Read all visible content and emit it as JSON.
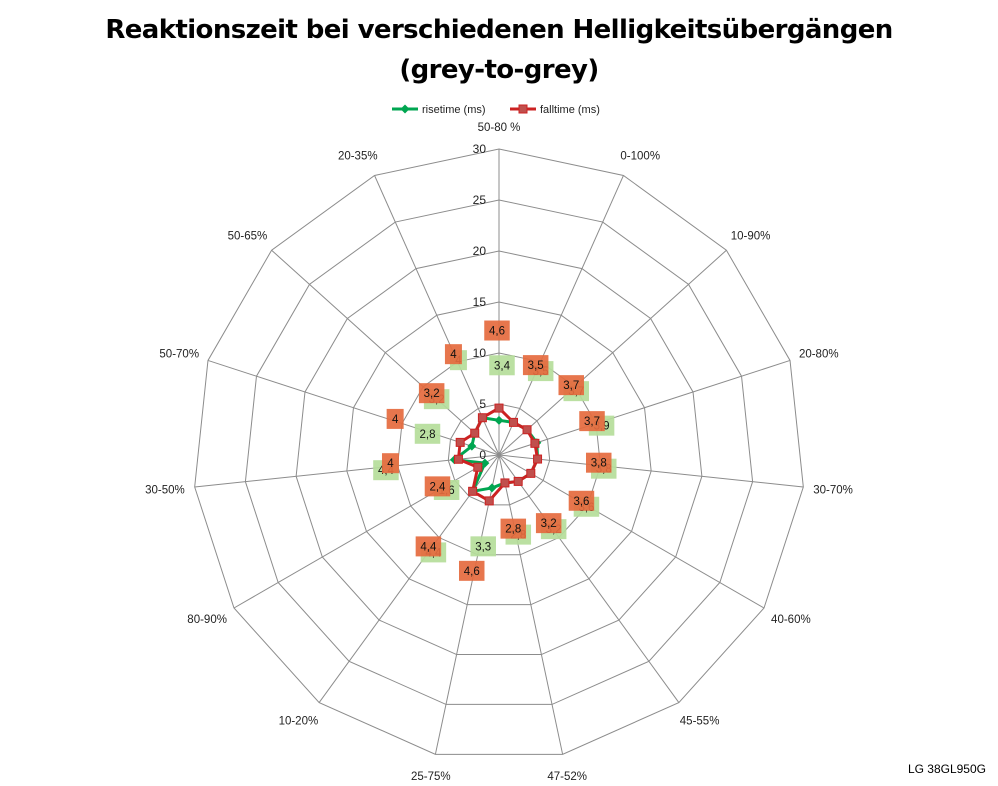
{
  "title_line1": "Reaktionszeit bei verschiedenen Helligkeitsübergängen",
  "title_line2": "(grey-to-grey)",
  "footer_label": "LG 38GL950G",
  "chart_data": {
    "type": "radar",
    "title": "Reaktionszeit bei verschiedenen Helligkeitsübergängen (grey-to-grey)",
    "categories": [
      "50-80 %",
      "0-100%",
      "10-90%",
      "20-80%",
      "30-70%",
      "40-60%",
      "45-55%",
      "47-52%",
      "25-75%",
      "10-20%",
      "80-90%",
      "30-50%",
      "50-70%",
      "50-65%",
      "20-35%"
    ],
    "radial_ticks": [
      0,
      5,
      10,
      15,
      20,
      25,
      30
    ],
    "rlim": [
      0,
      30
    ],
    "grid": true,
    "legend_position": "top",
    "series": [
      {
        "name": "risetime (ms)",
        "color": "#00a651",
        "label_color": "#b5dd9a",
        "marker": "diamond",
        "values": [
          3.4,
          3.5,
          3.7,
          3.9,
          3.8,
          3.6,
          3.2,
          2.8,
          3.3,
          4.4,
          1.6,
          4.4,
          2.8,
          3.2,
          4
        ],
        "labels": [
          "3,4",
          "3,5",
          "3,7",
          "3,9",
          "3,8",
          "3,6",
          "3,2",
          "2,8",
          "3,3",
          "4,4",
          "1,6",
          "4,4",
          "2,8",
          "3,2",
          "4"
        ]
      },
      {
        "name": "falltime (ms)",
        "color": "#cc2222",
        "label_color": "#f08080",
        "marker": "square",
        "values": [
          4.6,
          3.5,
          3.7,
          3.7,
          3.8,
          3.6,
          3.2,
          2.8,
          4.6,
          4.4,
          2.4,
          4,
          4,
          3.2,
          4
        ],
        "labels": [
          "4,6",
          "3,5",
          "3,7",
          "3,7",
          "3,8",
          "3,6",
          "3,2",
          "2,8",
          "4,6",
          "4,4",
          "2,4",
          "4",
          "4",
          "3,2",
          "4"
        ]
      }
    ]
  }
}
